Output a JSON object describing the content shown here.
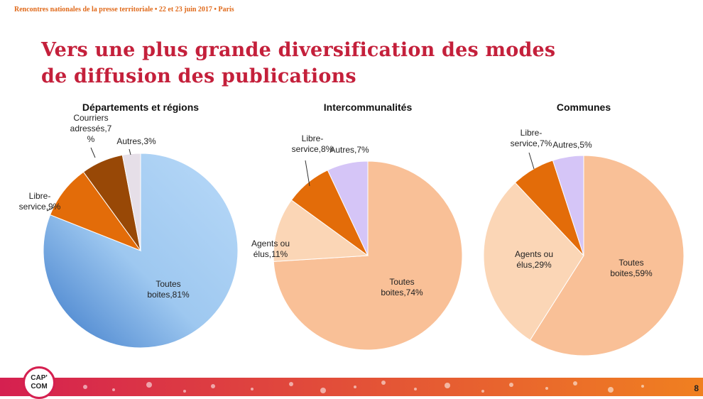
{
  "header": {
    "event_line": "Rencontres nationales de la presse territoriale • 22 et 23 juin 2017 • Paris"
  },
  "title": {
    "line1": "Vers une plus grande diversification des modes",
    "line2": "de diffusion des publications"
  },
  "chart_data": [
    {
      "type": "pie",
      "title": "Départements et régions",
      "slices": [
        {
          "label": "Toutes boites",
          "value": 81,
          "text": [
            "Toutes",
            "boites,81%"
          ],
          "color": "#9ec8f0"
        },
        {
          "label": "Libre-service",
          "value": 9,
          "text": [
            "Libre-",
            "service,9%"
          ],
          "color": "#e36c09"
        },
        {
          "label": "Courriers adressés",
          "value": 7,
          "text": [
            "Courriers",
            "adressés,7",
            "%"
          ],
          "color": "#984806"
        },
        {
          "label": "Autres",
          "value": 3,
          "text": [
            "Autres,3%"
          ],
          "color": "#e6dfe8"
        }
      ]
    },
    {
      "type": "pie",
      "title": "Intercommunalités",
      "slices": [
        {
          "label": "Toutes boites",
          "value": 74,
          "text": [
            "Toutes",
            "boites,74%"
          ],
          "color": "#f9c097"
        },
        {
          "label": "Agents ou élus",
          "value": 11,
          "text": [
            "Agents ou",
            "élus,11%"
          ],
          "color": "#fbd6b6"
        },
        {
          "label": "Libre-service",
          "value": 8,
          "text": [
            "Libre-",
            "service,8%"
          ],
          "color": "#e36c09"
        },
        {
          "label": "Autres",
          "value": 7,
          "text": [
            "Autres,7%"
          ],
          "color": "#d5c5f7"
        }
      ]
    },
    {
      "type": "pie",
      "title": "Communes",
      "slices": [
        {
          "label": "Toutes boites",
          "value": 59,
          "text": [
            "Toutes",
            "boites,59%"
          ],
          "color": "#f9c097"
        },
        {
          "label": "Agents ou élus",
          "value": 29,
          "text": [
            "Agents ou",
            "élus,29%"
          ],
          "color": "#fbd6b6"
        },
        {
          "label": "Libre-service",
          "value": 7,
          "text": [
            "Libre-",
            "service,7%"
          ],
          "color": "#e36c09"
        },
        {
          "label": "Autres",
          "value": 5,
          "text": [
            "Autres,5%"
          ],
          "color": "#d5c5f7"
        }
      ]
    }
  ],
  "logo": {
    "line1": "CAP'",
    "line2": "COM"
  },
  "footer": {
    "page_number": "8",
    "band_color_left": "#d52050",
    "band_color_right": "#f08020"
  }
}
